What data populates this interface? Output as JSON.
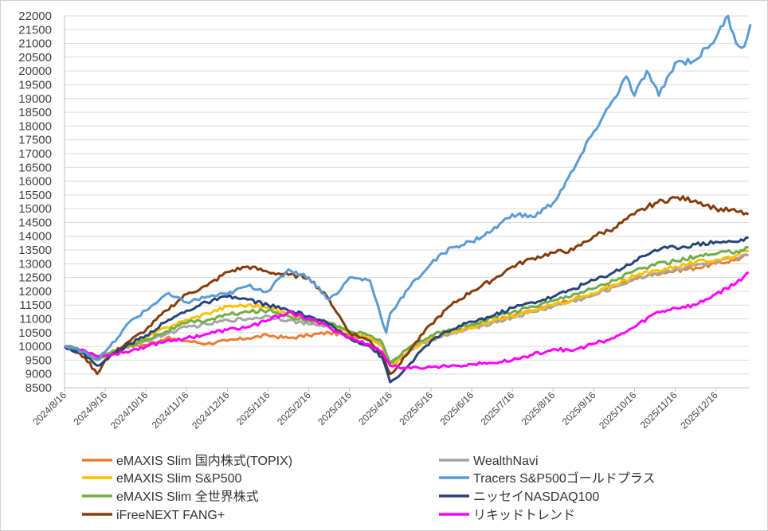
{
  "chart_data": {
    "type": "line",
    "title": "",
    "xlabel": "",
    "ylabel": "",
    "ylim": [
      8500,
      22000
    ],
    "y_ticks": [
      8500,
      9000,
      9500,
      10000,
      10500,
      11000,
      11500,
      12000,
      12500,
      13000,
      13500,
      14000,
      14500,
      15000,
      15500,
      16000,
      16500,
      17000,
      17500,
      18000,
      18500,
      19000,
      19500,
      20000,
      20500,
      21000,
      21500,
      22000
    ],
    "x_ticks": [
      "2024/8/16",
      "2024/9/16",
      "2024/10/16",
      "2024/11/16",
      "2024/12/16",
      "2025/1/16",
      "2025/2/16",
      "2025/3/16",
      "2025/4/16",
      "2025/5/16",
      "2025/6/16",
      "2025/7/16",
      "2025/8/16",
      "2025/9/16",
      "2025/10/16",
      "2025/11/16",
      "2025/12/16"
    ],
    "x_range_months": [
      0,
      16.9
    ],
    "grid": true,
    "legend_position": "bottom",
    "series": [
      {
        "name": "eMAXIS Slim 国内株式(TOPIX)",
        "color": "#ED7D31",
        "x": [
          0,
          0.5,
          0.8,
          1,
          1.5,
          2,
          2.5,
          3,
          3.5,
          4,
          4.5,
          5,
          5.5,
          6,
          6.5,
          7,
          7.5,
          7.8,
          8,
          8.2,
          8.5,
          9,
          9.5,
          10,
          10.5,
          11,
          11.5,
          12,
          12.5,
          13,
          13.5,
          14,
          14.5,
          15,
          15.5,
          16,
          16.5,
          16.8
        ],
        "y": [
          10000,
          9750,
          9600,
          9700,
          10000,
          10050,
          10300,
          10200,
          10100,
          10200,
          10300,
          10400,
          10300,
          10400,
          10500,
          10400,
          10300,
          10100,
          9300,
          9500,
          9900,
          10300,
          10500,
          10700,
          10900,
          11100,
          11300,
          11500,
          11700,
          11900,
          12200,
          12450,
          12650,
          12750,
          12850,
          13000,
          13150,
          13300
        ]
      },
      {
        "name": "WealthNavi",
        "color": "#A5A5A5",
        "x": [
          0,
          0.5,
          0.8,
          1,
          1.5,
          2,
          2.5,
          3,
          3.5,
          4,
          4.5,
          5,
          5.5,
          6,
          6.5,
          7,
          7.5,
          7.8,
          8,
          8.2,
          8.5,
          9,
          9.5,
          10,
          10.5,
          11,
          11.5,
          12,
          12.5,
          13,
          13.5,
          14,
          14.5,
          15,
          15.5,
          16,
          16.5,
          16.8
        ],
        "y": [
          10000,
          9800,
          9600,
          9700,
          10000,
          10200,
          10450,
          10700,
          10800,
          10950,
          11000,
          11100,
          10950,
          10800,
          10750,
          10500,
          10300,
          10100,
          9400,
          9550,
          9850,
          10250,
          10450,
          10650,
          10850,
          11050,
          11250,
          11450,
          11650,
          11850,
          12150,
          12450,
          12650,
          12800,
          12950,
          13050,
          13200,
          13300
        ]
      },
      {
        "name": "eMAXIS Slim S&P500",
        "color": "#FFC000",
        "x": [
          0,
          0.5,
          0.8,
          1,
          1.5,
          2,
          2.5,
          3,
          3.5,
          4,
          4.5,
          5,
          5.5,
          6,
          6.5,
          7,
          7.5,
          7.8,
          8,
          8.2,
          8.5,
          9,
          9.5,
          10,
          10.5,
          11,
          11.5,
          12,
          12.5,
          13,
          13.5,
          14,
          14.5,
          15,
          15.5,
          16,
          16.5,
          16.8
        ],
        "y": [
          10000,
          9800,
          9500,
          9600,
          10000,
          10300,
          10700,
          10950,
          11200,
          11450,
          11500,
          11400,
          11200,
          11000,
          10800,
          10500,
          10300,
          10000,
          9300,
          9500,
          9900,
          10300,
          10500,
          10700,
          10900,
          11100,
          11300,
          11500,
          11700,
          11900,
          12250,
          12550,
          12750,
          12900,
          13050,
          13150,
          13300,
          13450
        ]
      },
      {
        "name": "Tracers S&P500ゴールドプラス",
        "color": "#5B9BD5",
        "x": [
          0,
          0.5,
          0.8,
          1,
          1.3,
          1.6,
          2,
          2.5,
          3,
          3.5,
          4,
          4.5,
          5,
          5.5,
          6,
          6.5,
          6.8,
          7,
          7.5,
          7.9,
          8,
          8.2,
          8.5,
          9,
          9.5,
          10,
          10.5,
          11,
          11.5,
          12,
          12.5,
          13,
          13.5,
          13.8,
          14,
          14.3,
          14.6,
          15,
          15.5,
          16,
          16.3,
          16.5,
          16.7,
          16.85
        ],
        "y": [
          10000,
          9800,
          9500,
          9800,
          10300,
          10900,
          11300,
          11900,
          11600,
          11800,
          11900,
          12200,
          12000,
          12800,
          12500,
          11700,
          12100,
          12500,
          12400,
          10500,
          11200,
          11600,
          12200,
          13000,
          13600,
          13800,
          14200,
          14800,
          14700,
          15200,
          16400,
          17800,
          19000,
          19800,
          19100,
          20000,
          19100,
          20300,
          20400,
          21200,
          22000,
          21000,
          20900,
          21700
        ]
      },
      {
        "name": "eMAXIS Slim 全世界株式",
        "color": "#70AD47",
        "x": [
          0,
          0.5,
          0.8,
          1,
          1.5,
          2,
          2.5,
          3,
          3.5,
          4,
          4.5,
          5,
          5.5,
          6,
          6.5,
          7,
          7.5,
          7.8,
          8,
          8.2,
          8.5,
          9,
          9.5,
          10,
          10.5,
          11,
          11.5,
          12,
          12.5,
          13,
          13.5,
          14,
          14.5,
          15,
          15.5,
          16,
          16.5,
          16.8
        ],
        "y": [
          10000,
          9850,
          9600,
          9700,
          10000,
          10250,
          10550,
          10850,
          10950,
          11150,
          11250,
          11300,
          11100,
          10950,
          10850,
          10550,
          10400,
          10150,
          9400,
          9600,
          10000,
          10400,
          10600,
          10800,
          11050,
          11250,
          11450,
          11650,
          11900,
          12100,
          12400,
          12750,
          12950,
          13100,
          13250,
          13350,
          13450,
          13600
        ]
      },
      {
        "name": "ニッセイNASDAQ100",
        "color": "#264478",
        "x": [
          0,
          0.5,
          0.8,
          1,
          1.5,
          2,
          2.5,
          3,
          3.5,
          4,
          4.5,
          5,
          5.5,
          6,
          6.5,
          7,
          7.5,
          7.8,
          8,
          8.2,
          8.5,
          9,
          9.5,
          10,
          10.5,
          11,
          11.5,
          12,
          12.5,
          13,
          13.5,
          14,
          14.5,
          15,
          15.5,
          16,
          16.5,
          16.8
        ],
        "y": [
          10000,
          9700,
          9300,
          9500,
          10000,
          10400,
          10900,
          11300,
          11600,
          11800,
          11700,
          11500,
          11300,
          11100,
          10800,
          10300,
          10000,
          9600,
          8700,
          8900,
          9400,
          10200,
          10600,
          10900,
          11100,
          11400,
          11600,
          11800,
          12100,
          12400,
          12700,
          13100,
          13500,
          13600,
          13700,
          13800,
          13800,
          13950
        ]
      },
      {
        "name": "iFreeNEXT FANG+",
        "color": "#843C0C",
        "x": [
          0,
          0.5,
          0.8,
          1,
          1.5,
          2,
          2.5,
          3,
          3.5,
          4,
          4.5,
          5,
          5.5,
          6,
          6.5,
          7,
          7.5,
          7.8,
          8,
          8.2,
          8.5,
          9,
          9.5,
          10,
          10.5,
          11,
          11.5,
          12,
          12.5,
          13,
          13.5,
          14,
          14.5,
          15,
          15.5,
          16,
          16.5,
          16.8
        ],
        "y": [
          10000,
          9600,
          9000,
          9500,
          10100,
          10600,
          11300,
          11900,
          12200,
          12700,
          12900,
          12700,
          12600,
          12500,
          11700,
          10500,
          10200,
          9700,
          9000,
          9300,
          9900,
          10800,
          11500,
          12000,
          12400,
          12900,
          13200,
          13400,
          13500,
          14000,
          14300,
          14800,
          15200,
          15400,
          15300,
          15000,
          14900,
          14800
        ]
      },
      {
        "name": "リキッドトレンド",
        "color": "#FF00FF",
        "x": [
          0,
          0.5,
          0.8,
          1,
          1.5,
          2,
          2.5,
          3,
          3.5,
          4,
          4.5,
          5,
          5.5,
          6,
          6.5,
          7,
          7.5,
          7.8,
          8,
          8.2,
          8.5,
          9,
          9.5,
          10,
          10.5,
          11,
          11.5,
          12,
          12.5,
          13,
          13.5,
          14,
          14.5,
          15,
          15.5,
          16,
          16.5,
          16.8
        ],
        "y": [
          10000,
          9850,
          9650,
          9650,
          9800,
          10000,
          10200,
          10300,
          10450,
          10600,
          10700,
          10950,
          11250,
          11000,
          10700,
          10300,
          10050,
          9800,
          9300,
          9250,
          9200,
          9250,
          9300,
          9350,
          9400,
          9500,
          9700,
          9900,
          9850,
          10100,
          10300,
          10700,
          11200,
          11400,
          11500,
          11900,
          12300,
          12700
        ]
      }
    ]
  }
}
